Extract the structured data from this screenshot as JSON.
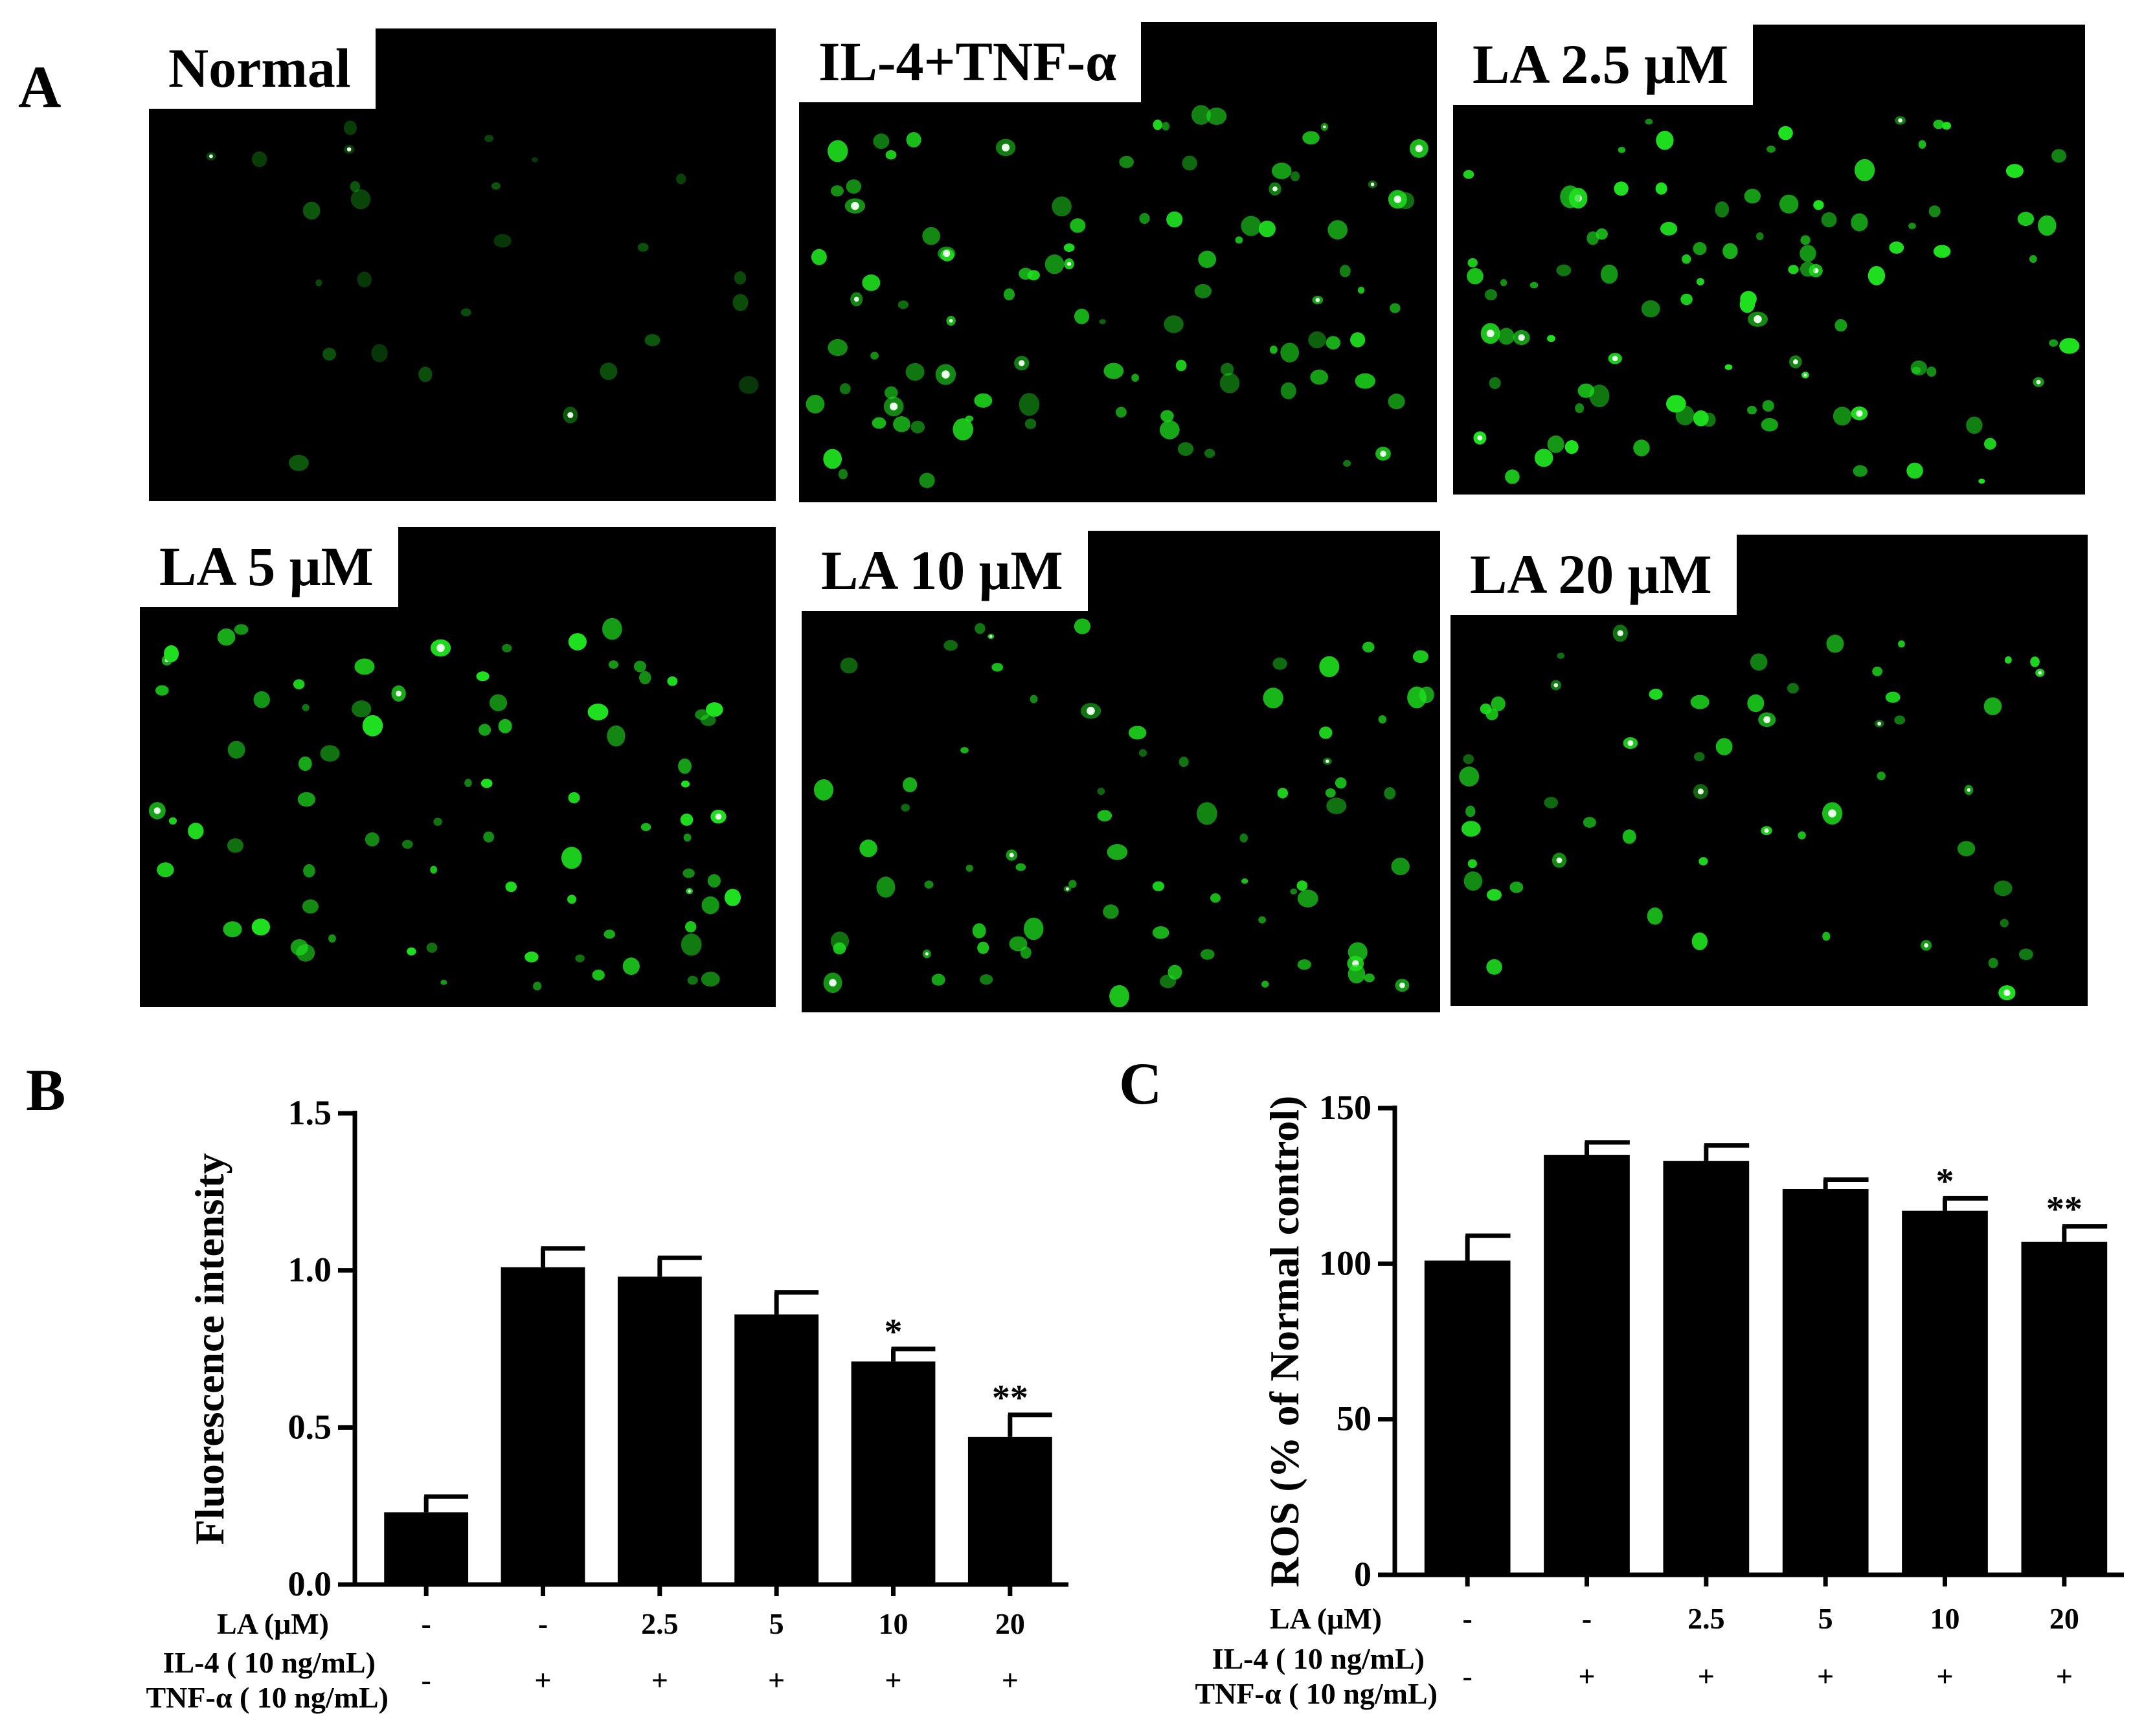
{
  "panels": {
    "A": "A",
    "B": "B",
    "C": "C"
  },
  "micrographs": [
    {
      "label": "Normal"
    },
    {
      "label": "IL-4+TNF-α"
    },
    {
      "label": "LA 2.5 μM"
    },
    {
      "label": "LA 5 μM"
    },
    {
      "label": "LA 10 μM"
    },
    {
      "label": "LA 20 μM"
    }
  ],
  "colors": {
    "fluorescence": "#1fe01f",
    "bar": "#000000",
    "background": "#000000"
  },
  "treatment_rows": {
    "la_label": "LA (μM)",
    "il4_label": "IL-4 ( 10 ng/mL)",
    "tnf_label": "TNF-α ( 10 ng/mL)",
    "la_values": [
      "-",
      "-",
      "2.5",
      "5",
      "10",
      "20"
    ],
    "il4_values": [
      "-",
      "+",
      "+",
      "+",
      "+",
      "+"
    ],
    "tnf_values": [
      "-",
      "+",
      "+",
      "+",
      "+",
      "+"
    ]
  },
  "chart_data": [
    {
      "type": "bar",
      "panel": "B",
      "ylabel": "Fluorescence intensity",
      "ylim": [
        0,
        1.5
      ],
      "yticks": [
        "0.0",
        "0.5",
        "1.0",
        "1.5"
      ],
      "values": [
        0.23,
        1.01,
        0.98,
        0.86,
        0.71,
        0.47
      ],
      "errors": [
        0.05,
        0.06,
        0.06,
        0.07,
        0.04,
        0.07
      ],
      "significance": [
        "",
        "",
        "",
        "",
        "*",
        "**"
      ]
    },
    {
      "type": "bar",
      "panel": "C",
      "ylabel": "ROS (% of Normal control)",
      "ylim": [
        0,
        150
      ],
      "yticks": [
        "0",
        "50",
        "100",
        "150"
      ],
      "values": [
        101,
        135,
        133,
        124,
        117,
        107
      ],
      "errors": [
        8,
        4,
        5,
        3,
        4,
        5
      ],
      "significance": [
        "",
        "",
        "",
        "",
        "*",
        "**"
      ]
    }
  ]
}
